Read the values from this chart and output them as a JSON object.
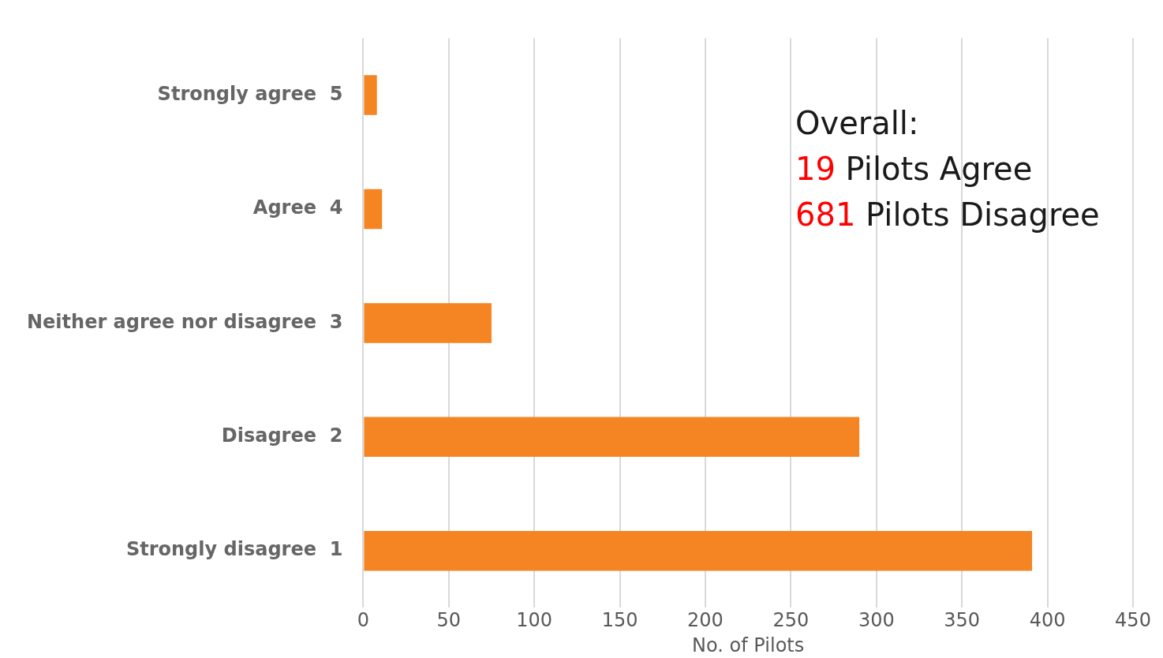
{
  "chart_data": {
    "type": "bar",
    "orientation": "horizontal",
    "categories": [
      "Strongly agree  5",
      "Agree  4",
      "Neither agree nor disagree  3",
      "Disagree  2",
      "Strongly disagree  1"
    ],
    "values": [
      8,
      11,
      75,
      290,
      391
    ],
    "color": "#f58423",
    "xlim": [
      0,
      450
    ],
    "xticks": [
      0,
      50,
      100,
      150,
      200,
      250,
      300,
      350,
      400,
      450
    ],
    "xlabel": "No. of Pilots",
    "grid": "x",
    "legend": false,
    "annotations": [
      "Overall:",
      "19 Pilots Agree",
      "681 Pilots Disagree"
    ]
  }
}
